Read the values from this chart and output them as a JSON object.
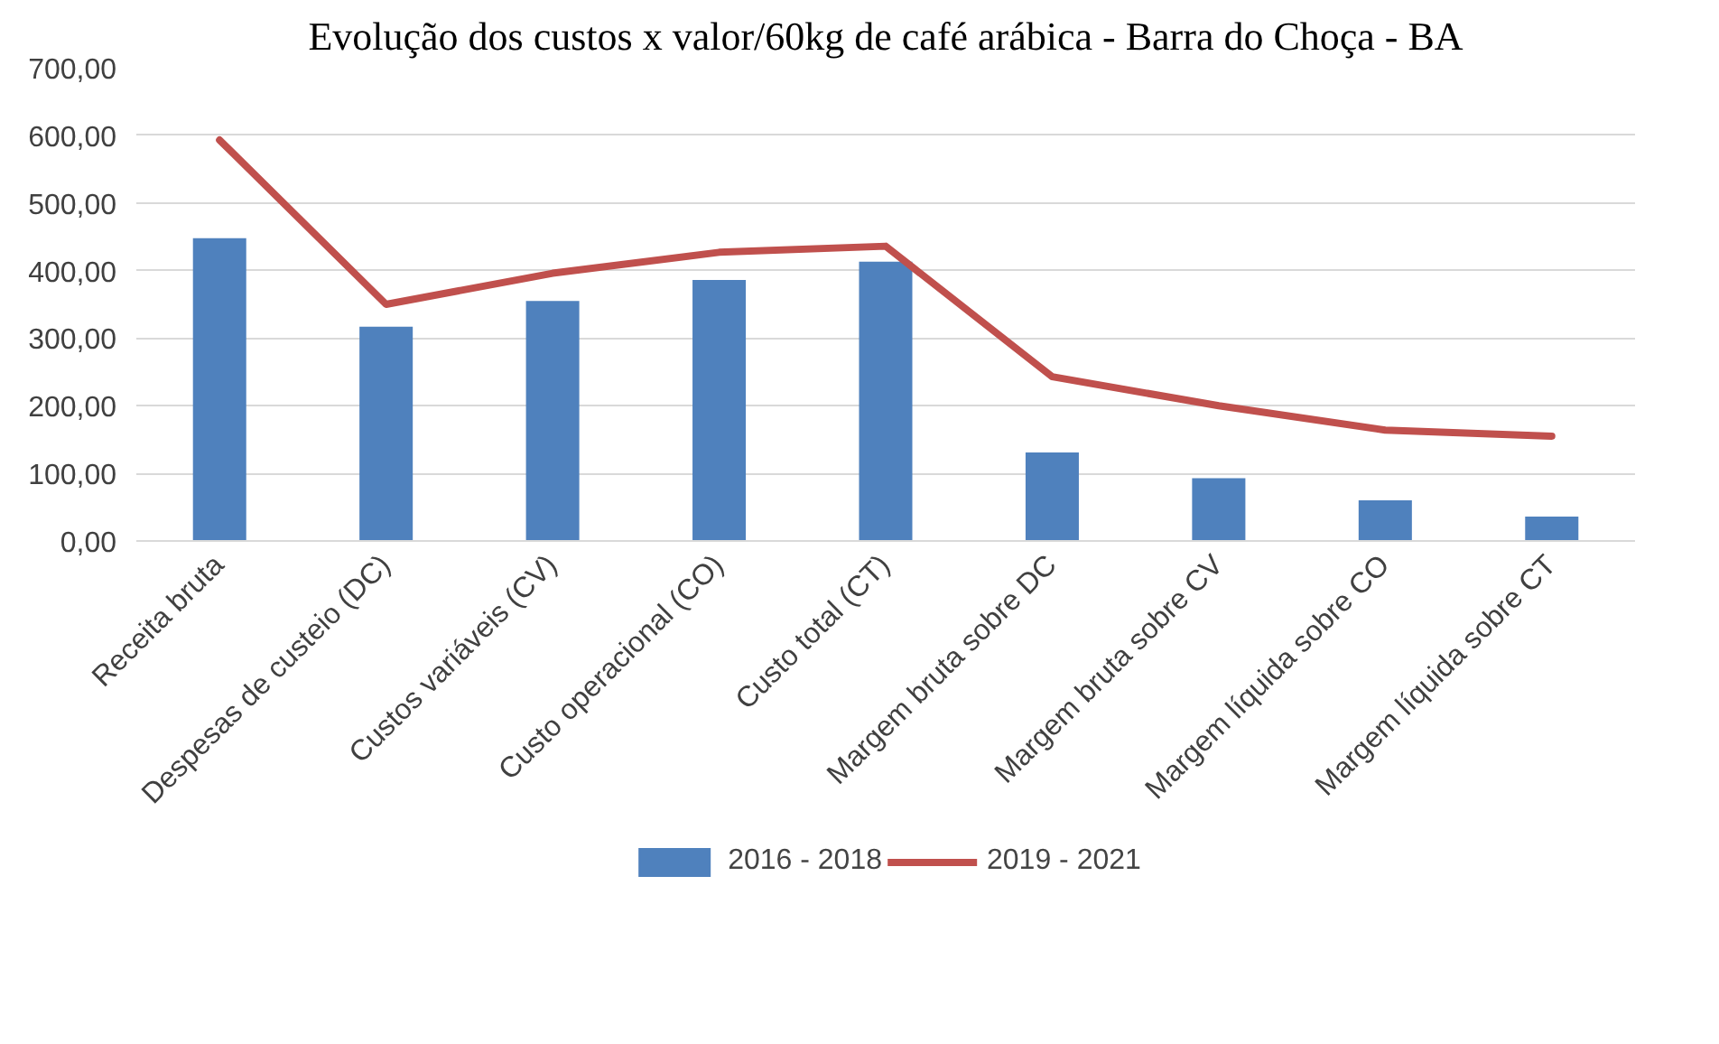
{
  "chart_data": {
    "type": "bar",
    "title": "Evolução dos custos x valor/60kg de café arábica - Barra do Choça - BA",
    "categories": [
      "Receita bruta",
      "Despesas de custeio (DC)",
      "Custos variáveis (CV)",
      "Custo operacional (CO)",
      "Custo total (CT)",
      "Margem bruta sobre DC",
      "Margem bruta sobre CV",
      "Margem líquida sobre CO",
      "Margem líquida sobre CT"
    ],
    "series": [
      {
        "name": "2016 - 2018",
        "color": "#4f81bd",
        "values": [
          448,
          317,
          355,
          386,
          413,
          131,
          93,
          60,
          36
        ]
      },
      {
        "name": "2019 - 2021",
        "type": "line",
        "color": "#c0504d",
        "values": [
          593,
          350,
          396,
          427,
          436,
          243,
          200,
          164,
          155
        ]
      }
    ],
    "ylim": [
      0,
      700
    ],
    "yticks": [
      {
        "value": 0,
        "label": "0,00"
      },
      {
        "value": 100,
        "label": "100,00"
      },
      {
        "value": 200,
        "label": "200,00"
      },
      {
        "value": 300,
        "label": "300,00"
      },
      {
        "value": 400,
        "label": "400,00"
      },
      {
        "value": 500,
        "label": "500,00"
      },
      {
        "value": 600,
        "label": "600,00"
      },
      {
        "value": 700,
        "label": "700,00"
      }
    ],
    "grid": "y",
    "legend": "bottom",
    "line_style": "solid",
    "marker": "none"
  }
}
